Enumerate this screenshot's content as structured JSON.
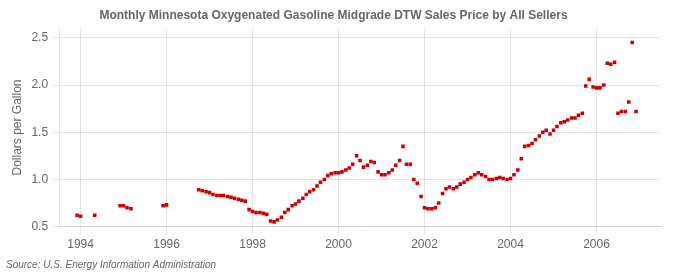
{
  "chart_data": {
    "type": "scatter",
    "title": "Monthly Minnesota Oxygenated Gasoline Midgrade DTW Sales Price by All Sellers",
    "ylabel": "Dollars per Gallon",
    "annotations": [
      "Source: U.S. Energy Information Administration"
    ],
    "color": "#cc0000",
    "marker": "square",
    "grid": true,
    "xlim": [
      1993.5,
      2007.5
    ],
    "xticks": [
      1994,
      1996,
      1998,
      2000,
      2002,
      2004,
      2006
    ],
    "ylim": [
      0.5,
      2.6
    ],
    "yticks": [
      0.5,
      {
        "value": 1.0,
        "label": "1.0"
      },
      1.5,
      {
        "value": 2.0,
        "label": "2.0"
      },
      2.5
    ],
    "x": [
      1993.92,
      1994.0,
      1994.33,
      1994.92,
      1995.0,
      1995.08,
      1995.17,
      1995.92,
      1996.0,
      1996.75,
      1996.83,
      1996.92,
      1997.0,
      1997.08,
      1997.17,
      1997.25,
      1997.33,
      1997.42,
      1997.5,
      1997.58,
      1997.67,
      1997.75,
      1997.83,
      1997.92,
      1998.0,
      1998.08,
      1998.17,
      1998.25,
      1998.33,
      1998.42,
      1998.5,
      1998.58,
      1998.67,
      1998.75,
      1998.83,
      1998.92,
      1999.0,
      1999.08,
      1999.17,
      1999.25,
      1999.33,
      1999.42,
      1999.5,
      1999.58,
      1999.67,
      1999.75,
      1999.83,
      1999.92,
      2000.0,
      2000.08,
      2000.17,
      2000.25,
      2000.33,
      2000.42,
      2000.5,
      2000.58,
      2000.67,
      2000.75,
      2000.83,
      2000.92,
      2001.0,
      2001.08,
      2001.17,
      2001.25,
      2001.33,
      2001.42,
      2001.5,
      2001.58,
      2001.67,
      2001.75,
      2001.83,
      2001.92,
      2002.0,
      2002.08,
      2002.17,
      2002.25,
      2002.33,
      2002.42,
      2002.5,
      2002.58,
      2002.67,
      2002.75,
      2002.83,
      2002.92,
      2003.0,
      2003.08,
      2003.17,
      2003.25,
      2003.33,
      2003.42,
      2003.5,
      2003.58,
      2003.67,
      2003.75,
      2003.83,
      2003.92,
      2004.0,
      2004.08,
      2004.17,
      2004.25,
      2004.33,
      2004.42,
      2004.5,
      2004.58,
      2004.67,
      2004.75,
      2004.83,
      2004.92,
      2005.0,
      2005.08,
      2005.17,
      2005.25,
      2005.33,
      2005.42,
      2005.5,
      2005.58,
      2005.67,
      2005.75,
      2005.83,
      2005.92,
      2006.0,
      2006.08,
      2006.17,
      2006.25,
      2006.33,
      2006.42,
      2006.5,
      2006.58,
      2006.67,
      2006.75,
      2006.83,
      2006.92
    ],
    "values": [
      0.62,
      0.61,
      0.62,
      0.72,
      0.72,
      0.7,
      0.69,
      0.72,
      0.73,
      0.89,
      0.88,
      0.87,
      0.86,
      0.84,
      0.83,
      0.83,
      0.83,
      0.82,
      0.81,
      0.8,
      0.79,
      0.78,
      0.77,
      0.68,
      0.66,
      0.65,
      0.65,
      0.64,
      0.63,
      0.56,
      0.55,
      0.57,
      0.6,
      0.65,
      0.68,
      0.72,
      0.74,
      0.77,
      0.8,
      0.84,
      0.87,
      0.89,
      0.93,
      0.97,
      1.0,
      1.04,
      1.06,
      1.07,
      1.07,
      1.08,
      1.1,
      1.12,
      1.16,
      1.25,
      1.2,
      1.13,
      1.15,
      1.19,
      1.18,
      1.08,
      1.05,
      1.05,
      1.07,
      1.1,
      1.15,
      1.2,
      1.35,
      1.16,
      1.16,
      1.0,
      0.96,
      0.82,
      0.7,
      0.69,
      0.69,
      0.7,
      0.75,
      0.85,
      0.9,
      0.92,
      0.9,
      0.92,
      0.95,
      0.97,
      1.0,
      1.02,
      1.05,
      1.07,
      1.05,
      1.03,
      1.0,
      1.0,
      1.01,
      1.02,
      1.01,
      1.0,
      1.01,
      1.05,
      1.1,
      1.22,
      1.35,
      1.36,
      1.38,
      1.42,
      1.46,
      1.5,
      1.52,
      1.48,
      1.52,
      1.56,
      1.6,
      1.61,
      1.63,
      1.65,
      1.65,
      1.68,
      1.7,
      1.99,
      2.06,
      1.98,
      1.97,
      1.97,
      2.0,
      2.23,
      2.22,
      2.24,
      1.7,
      1.72,
      1.72,
      1.82,
      2.45,
      1.72
    ]
  }
}
